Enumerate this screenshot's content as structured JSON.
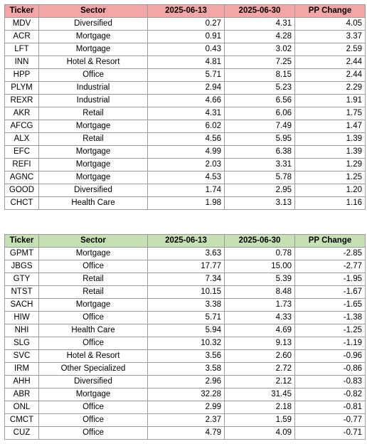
{
  "headers": [
    "Ticker",
    "Sector",
    "2025-06-13",
    "2025-06-30",
    "PP Change"
  ],
  "colors": {
    "gainers_header": "#f4a6a6",
    "losers_header": "#c6e0b4",
    "border": "#9a9a9a"
  },
  "gainers": [
    [
      "MDV",
      "Diversified",
      "0.27",
      "4.31",
      "4.05"
    ],
    [
      "ACR",
      "Mortgage",
      "0.91",
      "4.28",
      "3.37"
    ],
    [
      "LFT",
      "Mortgage",
      "0.43",
      "3.02",
      "2.59"
    ],
    [
      "INN",
      "Hotel & Resort",
      "4.81",
      "7.25",
      "2.44"
    ],
    [
      "HPP",
      "Office",
      "5.71",
      "8.15",
      "2.44"
    ],
    [
      "PLYM",
      "Industrial",
      "2.94",
      "5.23",
      "2.29"
    ],
    [
      "REXR",
      "Industrial",
      "4.66",
      "6.56",
      "1.91"
    ],
    [
      "AKR",
      "Retail",
      "4.31",
      "6.06",
      "1.75"
    ],
    [
      "AFCG",
      "Mortgage",
      "6.02",
      "7.49",
      "1.47"
    ],
    [
      "ALX",
      "Retail",
      "4.56",
      "5.95",
      "1.39"
    ],
    [
      "EFC",
      "Mortgage",
      "4.99",
      "6.38",
      "1.39"
    ],
    [
      "REFI",
      "Mortgage",
      "2.03",
      "3.31",
      "1.29"
    ],
    [
      "AGNC",
      "Mortgage",
      "4.53",
      "5.78",
      "1.25"
    ],
    [
      "GOOD",
      "Diversified",
      "1.74",
      "2.95",
      "1.20"
    ],
    [
      "CHCT",
      "Health Care",
      "1.98",
      "3.13",
      "1.16"
    ]
  ],
  "losers": [
    [
      "GPMT",
      "Mortgage",
      "3.63",
      "0.78",
      "-2.85"
    ],
    [
      "JBGS",
      "Office",
      "17.77",
      "15.00",
      "-2.77"
    ],
    [
      "GTY",
      "Retail",
      "7.34",
      "5.39",
      "-1.95"
    ],
    [
      "NTST",
      "Retail",
      "10.15",
      "8.48",
      "-1.67"
    ],
    [
      "SACH",
      "Mortgage",
      "3.38",
      "1.73",
      "-1.65"
    ],
    [
      "HIW",
      "Office",
      "5.71",
      "4.33",
      "-1.38"
    ],
    [
      "NHI",
      "Health Care",
      "5.94",
      "4.69",
      "-1.25"
    ],
    [
      "SLG",
      "Office",
      "10.32",
      "9.13",
      "-1.19"
    ],
    [
      "SVC",
      "Hotel & Resort",
      "3.56",
      "2.60",
      "-0.96"
    ],
    [
      "IRM",
      "Other Specialized",
      "3.58",
      "2.72",
      "-0.86"
    ],
    [
      "AHH",
      "Diversified",
      "2.96",
      "2.12",
      "-0.83"
    ],
    [
      "ABR",
      "Mortgage",
      "32.28",
      "31.45",
      "-0.82"
    ],
    [
      "ONL",
      "Office",
      "2.99",
      "2.18",
      "-0.81"
    ],
    [
      "CMCT",
      "Office",
      "2.37",
      "1.59",
      "-0.77"
    ],
    [
      "CUZ",
      "Office",
      "4.79",
      "4.09",
      "-0.71"
    ]
  ]
}
